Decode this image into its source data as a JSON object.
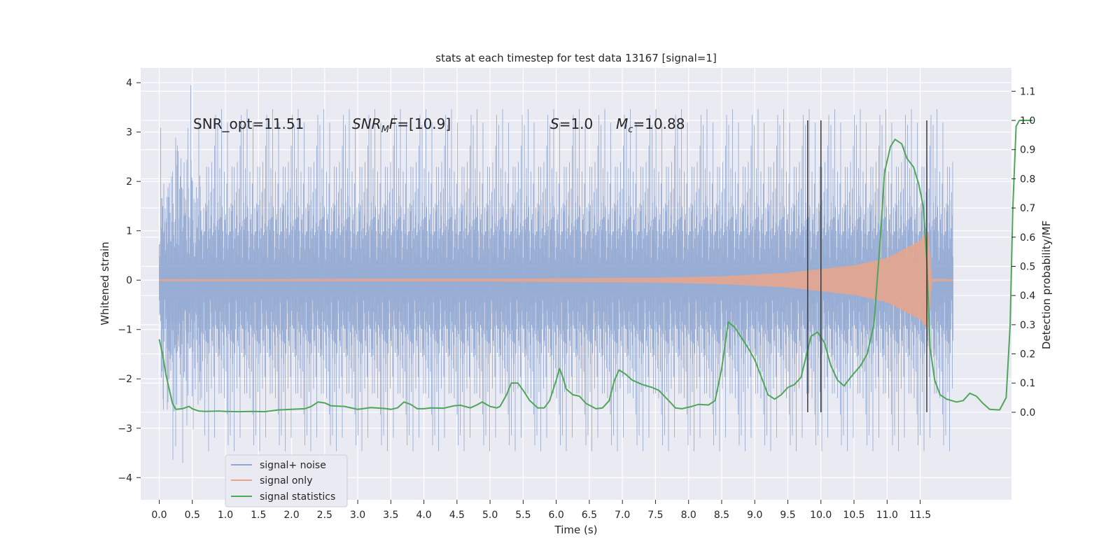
{
  "chart_data": {
    "type": "line",
    "title": "stats at each timestep for test data 13167 [signal=1]",
    "xlabel": "Time (s)",
    "ylabel_left": "Whitened strain",
    "ylabel_right": "Detection probability/MF",
    "xlim": [
      -0.28,
      12.88
    ],
    "ylim_left": [
      -4.45,
      4.3
    ],
    "ylim_right": [
      -0.3,
      1.18
    ],
    "x_ticks": [
      "0.0",
      "0.5",
      "1.0",
      "1.5",
      "2.0",
      "2.5",
      "3.0",
      "3.5",
      "4.0",
      "4.5",
      "5.0",
      "5.5",
      "6.0",
      "6.5",
      "7.0",
      "7.5",
      "8.0",
      "8.5",
      "9.0",
      "9.5",
      "10.0",
      "10.5",
      "11.0",
      "11.5"
    ],
    "x_tick_values": [
      0.0,
      0.5,
      1.0,
      1.5,
      2.0,
      2.5,
      3.0,
      3.5,
      4.0,
      4.5,
      5.0,
      5.5,
      6.0,
      6.5,
      7.0,
      7.5,
      8.0,
      8.5,
      9.0,
      9.5,
      10.0,
      10.5,
      11.0,
      11.5
    ],
    "y_left_ticks": [
      "−4",
      "−3",
      "−2",
      "−1",
      "0",
      "1",
      "2",
      "3",
      "4"
    ],
    "y_left_tick_values": [
      -4,
      -3,
      -2,
      -1,
      0,
      1,
      2,
      3,
      4
    ],
    "y_right_ticks": [
      "0.0",
      "0.1",
      "0.2",
      "0.3",
      "0.4",
      "0.5",
      "0.6",
      "0.7",
      "0.8",
      "0.9",
      "1.0",
      "1.1"
    ],
    "y_right_tick_values": [
      0.0,
      0.1,
      0.2,
      0.3,
      0.4,
      0.5,
      0.6,
      0.7,
      0.8,
      0.9,
      1.0,
      1.1
    ],
    "annotations": {
      "snr_opt": "SNR_opt=11.51",
      "snr_mf": "=[10.9]",
      "s": "=1.0",
      "mc": "=10.88"
    },
    "noise_series": {
      "name": "signal+ noise",
      "color": "#8fa6d0",
      "t_start": 0.0,
      "t_end": 12.0,
      "sigma": 1.0
    },
    "signal_series": {
      "name": "signal only",
      "color": "#e9a48a",
      "envelope": [
        [
          0.0,
          0.02
        ],
        [
          5.0,
          0.03
        ],
        [
          7.5,
          0.05
        ],
        [
          8.5,
          0.08
        ],
        [
          9.5,
          0.15
        ],
        [
          10.5,
          0.3
        ],
        [
          11.0,
          0.45
        ],
        [
          11.5,
          0.8
        ],
        [
          11.62,
          1.0
        ],
        [
          11.68,
          0.03
        ],
        [
          12.0,
          0.02
        ]
      ]
    },
    "stat_series": {
      "name": "signal statistics",
      "color": "#4fa65a",
      "points": [
        [
          0.0,
          0.25
        ],
        [
          0.05,
          0.2
        ],
        [
          0.1,
          0.13
        ],
        [
          0.2,
          0.03
        ],
        [
          0.25,
          0.01
        ],
        [
          0.35,
          0.012
        ],
        [
          0.45,
          0.02
        ],
        [
          0.5,
          0.012
        ],
        [
          0.6,
          0.004
        ],
        [
          0.7,
          0.003
        ],
        [
          0.9,
          0.004
        ],
        [
          1.0,
          0.003
        ],
        [
          1.2,
          0.002
        ],
        [
          1.4,
          0.003
        ],
        [
          1.6,
          0.002
        ],
        [
          1.8,
          0.008
        ],
        [
          2.0,
          0.01
        ],
        [
          2.2,
          0.012
        ],
        [
          2.3,
          0.02
        ],
        [
          2.4,
          0.035
        ],
        [
          2.5,
          0.032
        ],
        [
          2.6,
          0.022
        ],
        [
          2.8,
          0.02
        ],
        [
          3.0,
          0.01
        ],
        [
          3.2,
          0.016
        ],
        [
          3.4,
          0.013
        ],
        [
          3.5,
          0.01
        ],
        [
          3.6,
          0.015
        ],
        [
          3.7,
          0.035
        ],
        [
          3.8,
          0.027
        ],
        [
          3.9,
          0.012
        ],
        [
          4.0,
          0.012
        ],
        [
          4.1,
          0.015
        ],
        [
          4.3,
          0.014
        ],
        [
          4.45,
          0.022
        ],
        [
          4.55,
          0.024
        ],
        [
          4.7,
          0.015
        ],
        [
          4.8,
          0.025
        ],
        [
          4.88,
          0.035
        ],
        [
          5.0,
          0.02
        ],
        [
          5.1,
          0.015
        ],
        [
          5.15,
          0.02
        ],
        [
          5.25,
          0.06
        ],
        [
          5.32,
          0.1
        ],
        [
          5.42,
          0.1
        ],
        [
          5.5,
          0.075
        ],
        [
          5.6,
          0.04
        ],
        [
          5.72,
          0.015
        ],
        [
          5.82,
          0.015
        ],
        [
          5.9,
          0.04
        ],
        [
          6.0,
          0.11
        ],
        [
          6.05,
          0.15
        ],
        [
          6.1,
          0.12
        ],
        [
          6.15,
          0.08
        ],
        [
          6.25,
          0.06
        ],
        [
          6.35,
          0.055
        ],
        [
          6.45,
          0.03
        ],
        [
          6.6,
          0.012
        ],
        [
          6.7,
          0.015
        ],
        [
          6.8,
          0.04
        ],
        [
          6.88,
          0.11
        ],
        [
          6.95,
          0.145
        ],
        [
          7.05,
          0.13
        ],
        [
          7.15,
          0.11
        ],
        [
          7.3,
          0.095
        ],
        [
          7.45,
          0.085
        ],
        [
          7.55,
          0.075
        ],
        [
          7.7,
          0.04
        ],
        [
          7.8,
          0.015
        ],
        [
          7.9,
          0.012
        ],
        [
          8.05,
          0.02
        ],
        [
          8.15,
          0.027
        ],
        [
          8.3,
          0.025
        ],
        [
          8.4,
          0.04
        ],
        [
          8.5,
          0.15
        ],
        [
          8.6,
          0.31
        ],
        [
          8.7,
          0.29
        ],
        [
          8.8,
          0.255
        ],
        [
          8.9,
          0.22
        ],
        [
          9.0,
          0.18
        ],
        [
          9.1,
          0.12
        ],
        [
          9.2,
          0.06
        ],
        [
          9.3,
          0.045
        ],
        [
          9.4,
          0.06
        ],
        [
          9.5,
          0.085
        ],
        [
          9.6,
          0.095
        ],
        [
          9.7,
          0.12
        ],
        [
          9.85,
          0.26
        ],
        [
          9.95,
          0.275
        ],
        [
          10.05,
          0.24
        ],
        [
          10.15,
          0.16
        ],
        [
          10.25,
          0.11
        ],
        [
          10.35,
          0.09
        ],
        [
          10.45,
          0.12
        ],
        [
          10.6,
          0.16
        ],
        [
          10.7,
          0.2
        ],
        [
          10.8,
          0.3
        ],
        [
          10.9,
          0.6
        ],
        [
          10.96,
          0.82
        ],
        [
          11.05,
          0.91
        ],
        [
          11.12,
          0.935
        ],
        [
          11.22,
          0.92
        ],
        [
          11.3,
          0.87
        ],
        [
          11.4,
          0.84
        ],
        [
          11.48,
          0.78
        ],
        [
          11.55,
          0.7
        ],
        [
          11.6,
          0.52
        ],
        [
          11.65,
          0.22
        ],
        [
          11.72,
          0.11
        ],
        [
          11.8,
          0.06
        ],
        [
          11.9,
          0.045
        ],
        [
          12.05,
          0.035
        ],
        [
          12.15,
          0.04
        ],
        [
          12.25,
          0.065
        ],
        [
          12.35,
          0.055
        ],
        [
          12.45,
          0.03
        ],
        [
          12.55,
          0.01
        ],
        [
          12.7,
          0.008
        ],
        [
          12.8,
          0.05
        ],
        [
          12.86,
          0.3
        ],
        [
          12.9,
          0.7
        ],
        [
          12.95,
          0.98
        ],
        [
          13.0,
          1.0
        ],
        [
          13.2,
          1.0
        ]
      ]
    },
    "vertical_lines_x": [
      9.8,
      10.0,
      11.6
    ],
    "vertical_lines_ylim_right": [
      0.0,
      1.0
    ],
    "legend_position": "lower-left"
  },
  "colors": {
    "axes_bg": "#eaeaf2",
    "grid": "#ffffff",
    "text": "#262626",
    "vline": "#3a3a3a"
  }
}
